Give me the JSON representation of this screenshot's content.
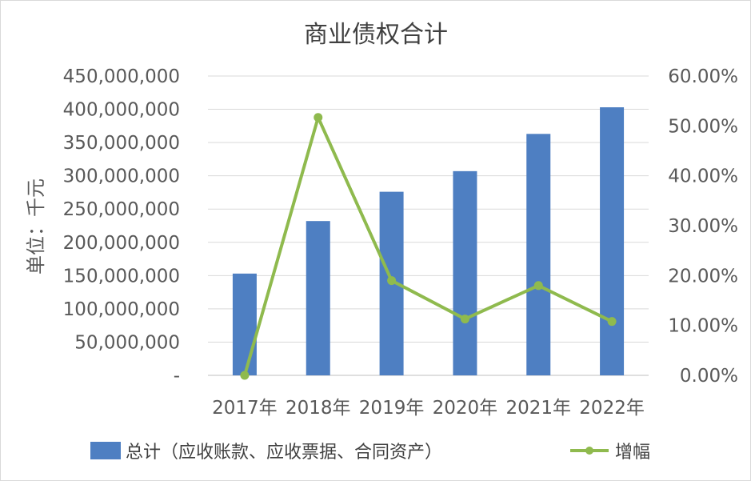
{
  "chart_data": {
    "type": "bar",
    "title": "商业债权合计",
    "ylabel": "单位：千元",
    "xlabel": "",
    "categories": [
      "2017年",
      "2018年",
      "2019年",
      "2020年",
      "2021年",
      "2022年"
    ],
    "series": [
      {
        "name": "总计（应收账款、应收票据、合同资产）",
        "type": "bar",
        "axis": "left",
        "color": "#4e7fc2",
        "values": [
          153000000,
          232000000,
          276000000,
          307000000,
          363000000,
          403000000
        ]
      },
      {
        "name": "增幅",
        "type": "line",
        "axis": "right",
        "color": "#8fba4e",
        "values": [
          0.0,
          51.7,
          19.0,
          11.3,
          18.0,
          10.8
        ]
      }
    ],
    "ylim_left": [
      0,
      450000000
    ],
    "ylim_right": [
      0,
      60
    ],
    "y_ticks_left": [
      "-",
      "50,000,000",
      "100,000,000",
      "150,000,000",
      "200,000,000",
      "250,000,000",
      "300,000,000",
      "350,000,000",
      "400,000,000",
      "450,000,000"
    ],
    "y_ticks_right": [
      "0.00%",
      "10.00%",
      "20.00%",
      "30.00%",
      "40.00%",
      "50.00%",
      "60.00%"
    ],
    "grid": true,
    "legend_position": "bottom"
  }
}
